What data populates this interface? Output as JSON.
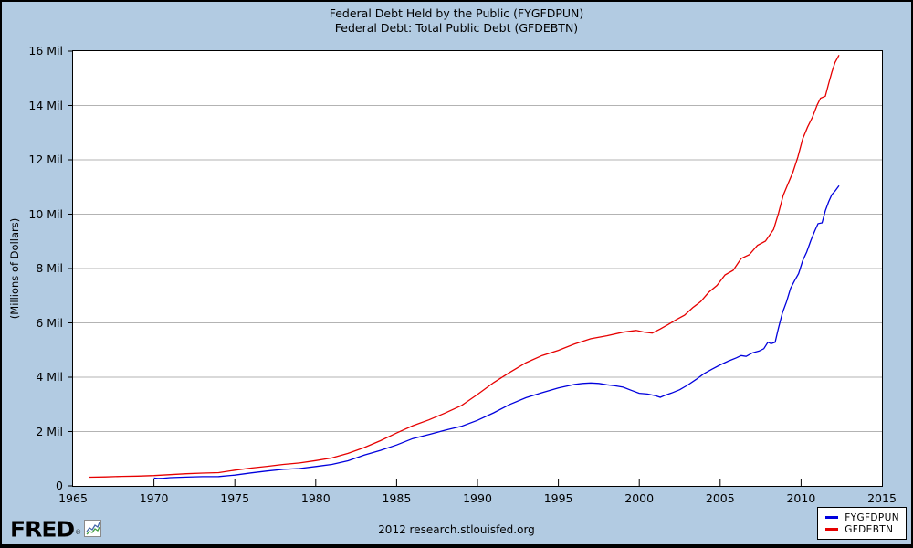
{
  "title": {
    "line1": "Federal Debt Held by the Public (FYGFDPUN)",
    "line2": "Federal Debt: Total Public Debt (GFDEBTN)"
  },
  "footer": {
    "text": "2012 research.stlouisfed.org"
  },
  "logo": {
    "text": "FRED",
    "registered": "®",
    "icon": "mini-line-chart-icon"
  },
  "legend": {
    "position": "bottom-right",
    "items": [
      {
        "label": "FYGFDPUN",
        "color": "#0000dd"
      },
      {
        "label": "GFDEBTN",
        "color": "#e60000"
      }
    ]
  },
  "colors": {
    "background": "#b2cbe2",
    "plot_background": "#ffffff",
    "grid": "#b3b3b3",
    "axis": "#000000",
    "text": "#000000",
    "series_fygfdpun": "#0000dd",
    "series_gfdebtn": "#e60000"
  },
  "chart_data": {
    "type": "line",
    "title": [
      "Federal Debt Held by the Public (FYGFDPUN)",
      "Federal Debt: Total Public Debt (GFDEBTN)"
    ],
    "xlabel": "",
    "ylabel": "(Millions of Dollars)",
    "xlim": [
      1965,
      2015
    ],
    "ylim": [
      0,
      16000000
    ],
    "grid": "horizontal",
    "legend_position": "bottom-right",
    "x_ticks": [
      1965,
      1970,
      1975,
      1980,
      1985,
      1990,
      1995,
      2000,
      2005,
      2010,
      2015
    ],
    "y_ticks": [
      {
        "value": 0,
        "label": "0"
      },
      {
        "value": 2000000,
        "label": "2 Mil"
      },
      {
        "value": 4000000,
        "label": "4 Mil"
      },
      {
        "value": 6000000,
        "label": "6 Mil"
      },
      {
        "value": 8000000,
        "label": "8 Mil"
      },
      {
        "value": 10000000,
        "label": "10 Mil"
      },
      {
        "value": 12000000,
        "label": "12 Mil"
      },
      {
        "value": 14000000,
        "label": "14 Mil"
      },
      {
        "value": 16000000,
        "label": "16 Mil"
      }
    ],
    "series": [
      {
        "name": "FYGFDPUN",
        "description": "Federal Debt Held by the Public",
        "color": "#0000dd",
        "points": [
          [
            1970.0,
            290000
          ],
          [
            1970.25,
            273000
          ],
          [
            1970.6,
            284000
          ],
          [
            1971,
            304000
          ],
          [
            1972,
            323000
          ],
          [
            1973,
            341000
          ],
          [
            1974,
            344000
          ],
          [
            1975,
            395000
          ],
          [
            1976,
            477000
          ],
          [
            1977,
            549000
          ],
          [
            1978,
            607000
          ],
          [
            1979,
            640000
          ],
          [
            1980,
            712000
          ],
          [
            1981,
            789000
          ],
          [
            1982,
            925000
          ],
          [
            1983,
            1137000
          ],
          [
            1984,
            1307000
          ],
          [
            1985,
            1507000
          ],
          [
            1986,
            1741000
          ],
          [
            1987,
            1890000
          ],
          [
            1988,
            2052000
          ],
          [
            1989,
            2191000
          ],
          [
            1990,
            2412000
          ],
          [
            1991,
            2689000
          ],
          [
            1992,
            3000000
          ],
          [
            1993,
            3248000
          ],
          [
            1994,
            3433000
          ],
          [
            1995,
            3604000
          ],
          [
            1996,
            3734000
          ],
          [
            1996.5,
            3770000
          ],
          [
            1997,
            3789000
          ],
          [
            1997.5,
            3772000
          ],
          [
            1998,
            3721000
          ],
          [
            1998.5,
            3685000
          ],
          [
            1999,
            3632000
          ],
          [
            1999.5,
            3520000
          ],
          [
            2000,
            3410000
          ],
          [
            2000.5,
            3382000
          ],
          [
            2001,
            3320000
          ],
          [
            2001.3,
            3260000
          ],
          [
            2001.6,
            3339000
          ],
          [
            2002,
            3420000
          ],
          [
            2002.5,
            3540000
          ],
          [
            2003,
            3715000
          ],
          [
            2003.5,
            3913000
          ],
          [
            2004,
            4132000
          ],
          [
            2004.5,
            4296000
          ],
          [
            2005,
            4453000
          ],
          [
            2005.5,
            4592000
          ],
          [
            2006,
            4714000
          ],
          [
            2006.3,
            4797000
          ],
          [
            2006.6,
            4765000
          ],
          [
            2007,
            4898000
          ],
          [
            2007.4,
            4960000
          ],
          [
            2007.7,
            5049000
          ],
          [
            2007.95,
            5288000
          ],
          [
            2008.15,
            5233000
          ],
          [
            2008.4,
            5284000
          ],
          [
            2008.6,
            5803000
          ],
          [
            2008.85,
            6369000
          ],
          [
            2009.1,
            6781000
          ],
          [
            2009.35,
            7270000
          ],
          [
            2009.6,
            7552000
          ],
          [
            2009.85,
            7811000
          ],
          [
            2010.1,
            8290000
          ],
          [
            2010.35,
            8610000
          ],
          [
            2010.6,
            9022000
          ],
          [
            2010.85,
            9390000
          ],
          [
            2011.05,
            9650000
          ],
          [
            2011.3,
            9680000
          ],
          [
            2011.5,
            10127000
          ],
          [
            2011.7,
            10450000
          ],
          [
            2011.9,
            10720000
          ],
          [
            2012.1,
            10850000
          ],
          [
            2012.35,
            11053000
          ]
        ]
      },
      {
        "name": "GFDEBTN",
        "description": "Federal Debt: Total Public Debt",
        "color": "#e60000",
        "points": [
          [
            1966,
            320000
          ],
          [
            1967,
            331000
          ],
          [
            1968,
            350000
          ],
          [
            1969,
            361000
          ],
          [
            1970,
            381000
          ],
          [
            1971,
            415000
          ],
          [
            1972,
            447000
          ],
          [
            1973,
            469000
          ],
          [
            1974,
            486000
          ],
          [
            1975,
            577000
          ],
          [
            1976,
            654000
          ],
          [
            1977,
            718000
          ],
          [
            1978,
            789000
          ],
          [
            1979,
            845000
          ],
          [
            1980,
            930000
          ],
          [
            1981,
            1029000
          ],
          [
            1982,
            1197000
          ],
          [
            1983,
            1411000
          ],
          [
            1984,
            1663000
          ],
          [
            1985,
            1946000
          ],
          [
            1986,
            2214000
          ],
          [
            1987,
            2431000
          ],
          [
            1988,
            2684000
          ],
          [
            1989,
            2953000
          ],
          [
            1990,
            3365000
          ],
          [
            1991,
            3802000
          ],
          [
            1992,
            4177000
          ],
          [
            1993,
            4536000
          ],
          [
            1994,
            4800000
          ],
          [
            1995,
            4988000
          ],
          [
            1996,
            5225000
          ],
          [
            1997,
            5414000
          ],
          [
            1998,
            5526000
          ],
          [
            1999,
            5656000
          ],
          [
            1999.8,
            5720000
          ],
          [
            2000.3,
            5659000
          ],
          [
            2000.8,
            5622000
          ],
          [
            2001.3,
            5774000
          ],
          [
            2001.8,
            5943000
          ],
          [
            2002.3,
            6126000
          ],
          [
            2002.8,
            6283000
          ],
          [
            2003.3,
            6558000
          ],
          [
            2003.8,
            6783000
          ],
          [
            2004.3,
            7131000
          ],
          [
            2004.8,
            7379000
          ],
          [
            2005.3,
            7765000
          ],
          [
            2005.8,
            7933000
          ],
          [
            2006.3,
            8371000
          ],
          [
            2006.8,
            8507000
          ],
          [
            2007.3,
            8849000
          ],
          [
            2007.8,
            9008000
          ],
          [
            2008.3,
            9438000
          ],
          [
            2008.6,
            10025000
          ],
          [
            2008.9,
            10700000
          ],
          [
            2009.2,
            11127000
          ],
          [
            2009.5,
            11545000
          ],
          [
            2009.8,
            12104000
          ],
          [
            2010.1,
            12773000
          ],
          [
            2010.4,
            13202000
          ],
          [
            2010.7,
            13562000
          ],
          [
            2011.0,
            14025000
          ],
          [
            2011.2,
            14270000
          ],
          [
            2011.5,
            14343000
          ],
          [
            2011.7,
            14790000
          ],
          [
            2011.9,
            15223000
          ],
          [
            2012.1,
            15582000
          ],
          [
            2012.35,
            15856000
          ]
        ]
      }
    ]
  }
}
